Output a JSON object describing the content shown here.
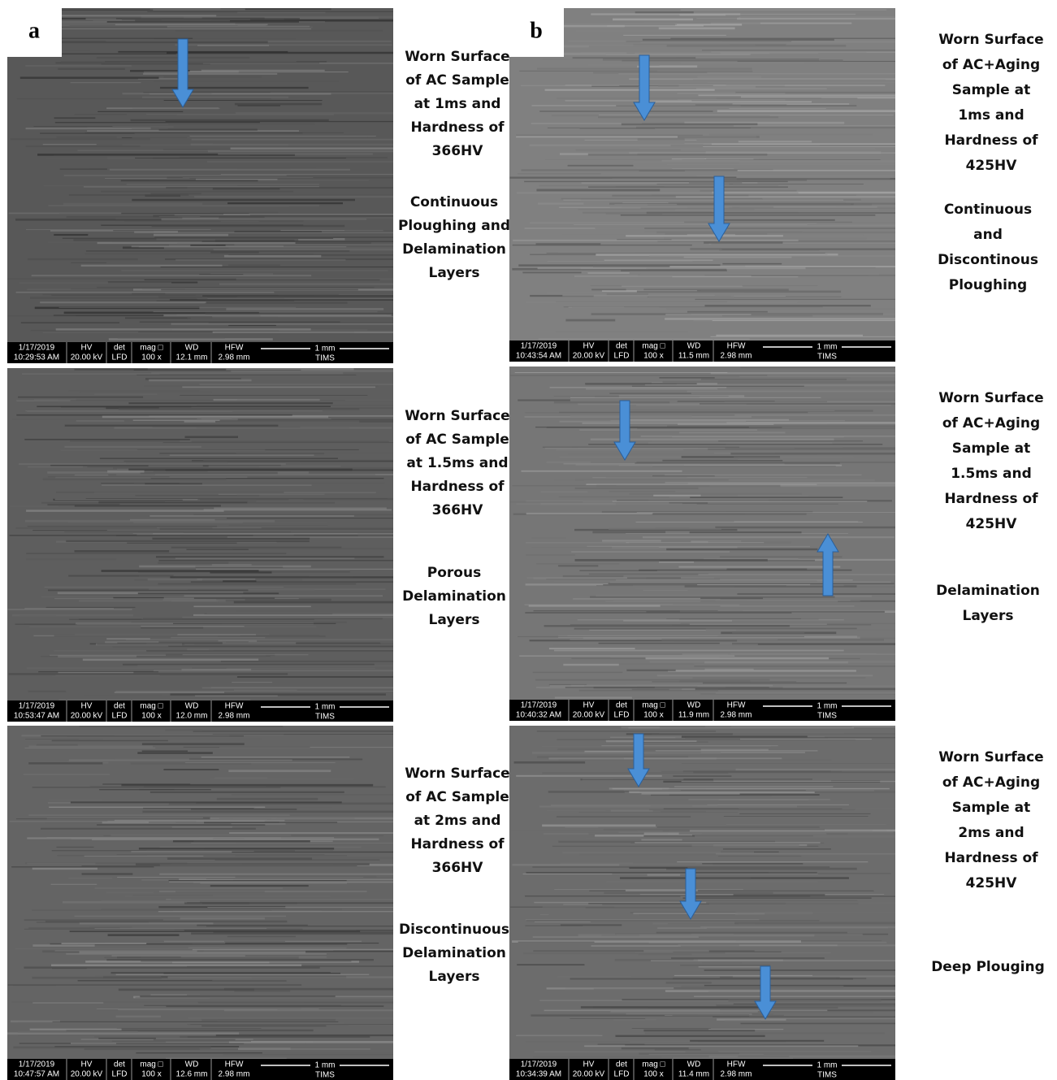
{
  "info_headers": {
    "hv": "HV",
    "det": "det",
    "mag": "mag □",
    "wd": "WD",
    "hfw": "HFW"
  },
  "columns": [
    {
      "label": "a",
      "images": [
        {
          "caption": [
            "Worn Surface",
            "of AC Sample",
            "at 1ms and",
            "Hardness of",
            "366HV"
          ],
          "note": [
            "Continuous",
            "Ploughing and",
            "Delamination",
            "Layers"
          ],
          "info": {
            "date": "1/17/2019",
            "time": "10:29:53 AM",
            "hv": "20.00 kV",
            "det": "LFD",
            "mag": "100 x",
            "wd": "12.1 mm",
            "hfw": "2.98 mm",
            "scale": "1 mm",
            "lab": "TIMS"
          }
        },
        {
          "caption": [
            "Worn Surface",
            "of AC Sample",
            "at 1.5ms and",
            "Hardness of",
            "366HV"
          ],
          "note": [
            "Porous",
            "Delamination",
            "Layers"
          ],
          "info": {
            "date": "1/17/2019",
            "time": "10:53:47 AM",
            "hv": "20.00 kV",
            "det": "LFD",
            "mag": "100 x",
            "wd": "12.0 mm",
            "hfw": "2.98 mm",
            "scale": "1 mm",
            "lab": "TIMS"
          }
        },
        {
          "caption": [
            "Worn Surface",
            "of AC Sample",
            "at 2ms and",
            "Hardness of",
            "366HV"
          ],
          "note": [
            "Discontinuous",
            "Delamination",
            "Layers"
          ],
          "info": {
            "date": "1/17/2019",
            "time": "10:47:57 AM",
            "hv": "20.00 kV",
            "det": "LFD",
            "mag": "100 x",
            "wd": "12.6 mm",
            "hfw": "2.98 mm",
            "scale": "1 mm",
            "lab": "TIMS"
          }
        }
      ]
    },
    {
      "label": "b",
      "images": [
        {
          "caption": [
            "Worn Surface",
            "of AC+Aging",
            "Sample at",
            "1ms and",
            "Hardness of",
            "425HV"
          ],
          "note": [
            "Continuous",
            "and",
            "Discontinous",
            "Ploughing"
          ],
          "info": {
            "date": "1/17/2019",
            "time": "10:43:54 AM",
            "hv": "20.00 kV",
            "det": "LFD",
            "mag": "100 x",
            "wd": "11.5 mm",
            "hfw": "2.98 mm",
            "scale": "1 mm",
            "lab": "TIMS"
          }
        },
        {
          "caption": [
            "Worn Surface",
            "of AC+Aging",
            "Sample at",
            "1.5ms and",
            "Hardness of",
            "425HV"
          ],
          "note": [
            "Delamination",
            "Layers"
          ],
          "info": {
            "date": "1/17/2019",
            "time": "10:40:32 AM",
            "hv": "20.00 kV",
            "det": "LFD",
            "mag": "100 x",
            "wd": "11.9 mm",
            "hfw": "2.98 mm",
            "scale": "1 mm",
            "lab": "TIMS"
          }
        },
        {
          "caption": [
            "Worn Surface",
            "of AC+Aging",
            "Sample at",
            "2ms and",
            "Hardness of",
            "425HV"
          ],
          "note": [
            "Deep Plouging"
          ],
          "info": {
            "date": "1/17/2019",
            "time": "10:34:39 AM",
            "hv": "20.00 kV",
            "det": "LFD",
            "mag": "100 x",
            "wd": "11.4 mm",
            "hfw": "2.98 mm",
            "scale": "1 mm",
            "lab": "TIMS"
          }
        }
      ]
    }
  ]
}
